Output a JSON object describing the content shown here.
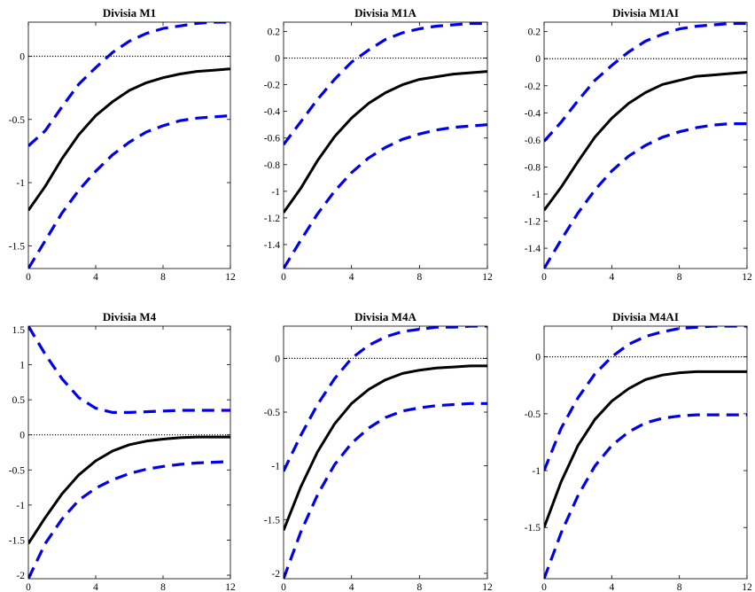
{
  "chart_data": [
    {
      "type": "line",
      "title": "Divisia M1",
      "xlim": [
        0,
        12
      ],
      "ylim": [
        -1.68,
        0.27
      ],
      "xticks": [
        0,
        4,
        8,
        12
      ],
      "xtick_labels": [
        "0",
        "4",
        "8",
        "12"
      ],
      "yticks": [
        -1.5,
        -1,
        -0.5,
        0
      ],
      "ytick_labels": [
        "-1.5",
        "-1",
        "-0.5",
        "0"
      ],
      "zero_line": true,
      "grid": false,
      "x": [
        0,
        1,
        2,
        3,
        4,
        5,
        6,
        7,
        8,
        9,
        10,
        11,
        12
      ],
      "series": [
        {
          "style": "solid",
          "color": "#000000",
          "values": [
            -1.22,
            -1.03,
            -0.81,
            -0.62,
            -0.47,
            -0.36,
            -0.27,
            -0.21,
            -0.17,
            -0.14,
            -0.12,
            -0.11,
            -0.1
          ]
        },
        {
          "style": "dashed",
          "color": "#0000ee",
          "values": [
            -0.71,
            -0.59,
            -0.4,
            -0.22,
            -0.09,
            0.03,
            0.12,
            0.18,
            0.22,
            0.24,
            0.26,
            0.27,
            0.27
          ]
        },
        {
          "style": "dashed",
          "color": "#0000ee",
          "values": [
            -1.68,
            -1.46,
            -1.24,
            -1.06,
            -0.91,
            -0.78,
            -0.68,
            -0.6,
            -0.55,
            -0.51,
            -0.49,
            -0.48,
            -0.47
          ]
        }
      ]
    },
    {
      "type": "line",
      "title": "Divisia M1A",
      "xlim": [
        0,
        12
      ],
      "ylim": [
        -1.58,
        0.27
      ],
      "xticks": [
        0,
        4,
        8,
        12
      ],
      "xtick_labels": [
        "0",
        "4",
        "8",
        "12"
      ],
      "yticks": [
        -1.4,
        -1.2,
        -1,
        -0.8,
        -0.6,
        -0.4,
        -0.2,
        0,
        0.2
      ],
      "ytick_labels": [
        "-1.4",
        "-1.2",
        "-1",
        "-0.8",
        "-0.6",
        "-0.4",
        "-0.2",
        "0",
        "0.2"
      ],
      "zero_line": true,
      "grid": false,
      "x": [
        0,
        1,
        2,
        3,
        4,
        5,
        6,
        7,
        8,
        9,
        10,
        11,
        12
      ],
      "series": [
        {
          "style": "solid",
          "color": "#000000",
          "values": [
            -1.16,
            -0.98,
            -0.77,
            -0.59,
            -0.45,
            -0.34,
            -0.26,
            -0.2,
            -0.16,
            -0.14,
            -0.12,
            -0.11,
            -0.1
          ]
        },
        {
          "style": "dashed",
          "color": "#0000ee",
          "values": [
            -0.65,
            -0.48,
            -0.31,
            -0.16,
            -0.03,
            0.06,
            0.14,
            0.19,
            0.22,
            0.24,
            0.25,
            0.26,
            0.26
          ]
        },
        {
          "style": "dashed",
          "color": "#0000ee",
          "values": [
            -1.58,
            -1.37,
            -1.17,
            -1.0,
            -0.86,
            -0.75,
            -0.67,
            -0.61,
            -0.57,
            -0.54,
            -0.52,
            -0.51,
            -0.5
          ]
        }
      ]
    },
    {
      "type": "line",
      "title": "Divisia M1AI",
      "xlim": [
        0,
        12
      ],
      "ylim": [
        -1.55,
        0.27
      ],
      "xticks": [
        0,
        4,
        8,
        12
      ],
      "xtick_labels": [
        "0",
        "4",
        "8",
        "12"
      ],
      "yticks": [
        -1.4,
        -1.2,
        -1,
        -0.8,
        -0.6,
        -0.4,
        -0.2,
        0,
        0.2
      ],
      "ytick_labels": [
        "-1.4",
        "-1.2",
        "-1",
        "-0.8",
        "-0.6",
        "-0.4",
        "-0.2",
        "0",
        "0.2"
      ],
      "zero_line": true,
      "grid": false,
      "x": [
        0,
        1,
        2,
        3,
        4,
        5,
        6,
        7,
        8,
        9,
        10,
        11,
        12
      ],
      "series": [
        {
          "style": "solid",
          "color": "#000000",
          "values": [
            -1.12,
            -0.95,
            -0.76,
            -0.58,
            -0.44,
            -0.33,
            -0.25,
            -0.19,
            -0.16,
            -0.13,
            -0.12,
            -0.11,
            -0.1
          ]
        },
        {
          "style": "dashed",
          "color": "#0000ee",
          "values": [
            -0.61,
            -0.47,
            -0.31,
            -0.16,
            -0.05,
            0.05,
            0.13,
            0.18,
            0.22,
            0.24,
            0.25,
            0.26,
            0.26
          ]
        },
        {
          "style": "dashed",
          "color": "#0000ee",
          "values": [
            -1.55,
            -1.34,
            -1.14,
            -0.97,
            -0.83,
            -0.72,
            -0.64,
            -0.58,
            -0.54,
            -0.51,
            -0.49,
            -0.48,
            -0.48
          ]
        }
      ]
    },
    {
      "type": "line",
      "title": "Divisia M4",
      "xlim": [
        0,
        12
      ],
      "ylim": [
        -2.05,
        1.55
      ],
      "xticks": [
        0,
        4,
        8,
        12
      ],
      "xtick_labels": [
        "0",
        "4",
        "8",
        "12"
      ],
      "yticks": [
        -2,
        -1.5,
        -1,
        -0.5,
        0,
        0.5,
        1,
        1.5
      ],
      "ytick_labels": [
        "-2",
        "-1.5",
        "-1",
        "-0.5",
        "0",
        "0.5",
        "1",
        "1.5"
      ],
      "zero_line": true,
      "grid": false,
      "x": [
        0,
        1,
        2,
        3,
        4,
        5,
        6,
        7,
        8,
        9,
        10,
        11,
        12
      ],
      "series": [
        {
          "style": "solid",
          "color": "#000000",
          "values": [
            -1.55,
            -1.18,
            -0.84,
            -0.57,
            -0.37,
            -0.23,
            -0.14,
            -0.09,
            -0.06,
            -0.04,
            -0.03,
            -0.03,
            -0.03
          ]
        },
        {
          "style": "dashed",
          "color": "#0000ee",
          "values": [
            1.55,
            1.15,
            0.8,
            0.53,
            0.38,
            0.32,
            0.32,
            0.33,
            0.34,
            0.35,
            0.35,
            0.35,
            0.35
          ]
        },
        {
          "style": "dashed",
          "color": "#0000ee",
          "values": [
            -2.05,
            -1.55,
            -1.2,
            -0.93,
            -0.76,
            -0.64,
            -0.55,
            -0.49,
            -0.45,
            -0.42,
            -0.4,
            -0.39,
            -0.38
          ]
        }
      ]
    },
    {
      "type": "line",
      "title": "Divisia M4A",
      "xlim": [
        0,
        12
      ],
      "ylim": [
        -2.05,
        0.3
      ],
      "xticks": [
        0,
        4,
        8,
        12
      ],
      "xtick_labels": [
        "0",
        "4",
        "8",
        "12"
      ],
      "yticks": [
        -2,
        -1.5,
        -1,
        -0.5,
        0
      ],
      "ytick_labels": [
        "-2",
        "-1.5",
        "-1",
        "-0.5",
        "0"
      ],
      "zero_line": true,
      "grid": false,
      "x": [
        0,
        1,
        2,
        3,
        4,
        5,
        6,
        7,
        8,
        9,
        10,
        11,
        12
      ],
      "series": [
        {
          "style": "solid",
          "color": "#000000",
          "values": [
            -1.6,
            -1.2,
            -0.87,
            -0.61,
            -0.42,
            -0.29,
            -0.2,
            -0.14,
            -0.11,
            -0.09,
            -0.08,
            -0.07,
            -0.07
          ]
        },
        {
          "style": "dashed",
          "color": "#0000ee",
          "values": [
            -1.05,
            -0.72,
            -0.43,
            -0.19,
            0.0,
            0.12,
            0.2,
            0.25,
            0.27,
            0.29,
            0.29,
            0.3,
            0.3
          ]
        },
        {
          "style": "dashed",
          "color": "#0000ee",
          "values": [
            -2.05,
            -1.62,
            -1.27,
            -0.99,
            -0.79,
            -0.65,
            -0.55,
            -0.49,
            -0.46,
            -0.44,
            -0.43,
            -0.42,
            -0.42
          ]
        }
      ]
    },
    {
      "type": "line",
      "title": "Divisia M4AI",
      "xlim": [
        0,
        12
      ],
      "ylim": [
        -1.95,
        0.27
      ],
      "xticks": [
        0,
        4,
        8,
        12
      ],
      "xtick_labels": [
        "0",
        "4",
        "8",
        "12"
      ],
      "yticks": [
        -1.5,
        -1,
        -0.5,
        0
      ],
      "ytick_labels": [
        "-1.5",
        "-1",
        "-0.5",
        "0"
      ],
      "zero_line": true,
      "grid": false,
      "x": [
        0,
        1,
        2,
        3,
        4,
        5,
        6,
        7,
        8,
        9,
        10,
        11,
        12
      ],
      "series": [
        {
          "style": "solid",
          "color": "#000000",
          "values": [
            -1.5,
            -1.1,
            -0.78,
            -0.55,
            -0.39,
            -0.28,
            -0.2,
            -0.16,
            -0.14,
            -0.13,
            -0.13,
            -0.13,
            -0.13
          ]
        },
        {
          "style": "dashed",
          "color": "#0000ee",
          "values": [
            -1.0,
            -0.63,
            -0.36,
            -0.15,
            0.0,
            0.11,
            0.18,
            0.22,
            0.25,
            0.26,
            0.27,
            0.27,
            0.27
          ]
        },
        {
          "style": "dashed",
          "color": "#0000ee",
          "values": [
            -1.95,
            -1.55,
            -1.22,
            -0.96,
            -0.78,
            -0.66,
            -0.58,
            -0.54,
            -0.52,
            -0.51,
            -0.51,
            -0.51,
            -0.51
          ]
        }
      ]
    }
  ]
}
